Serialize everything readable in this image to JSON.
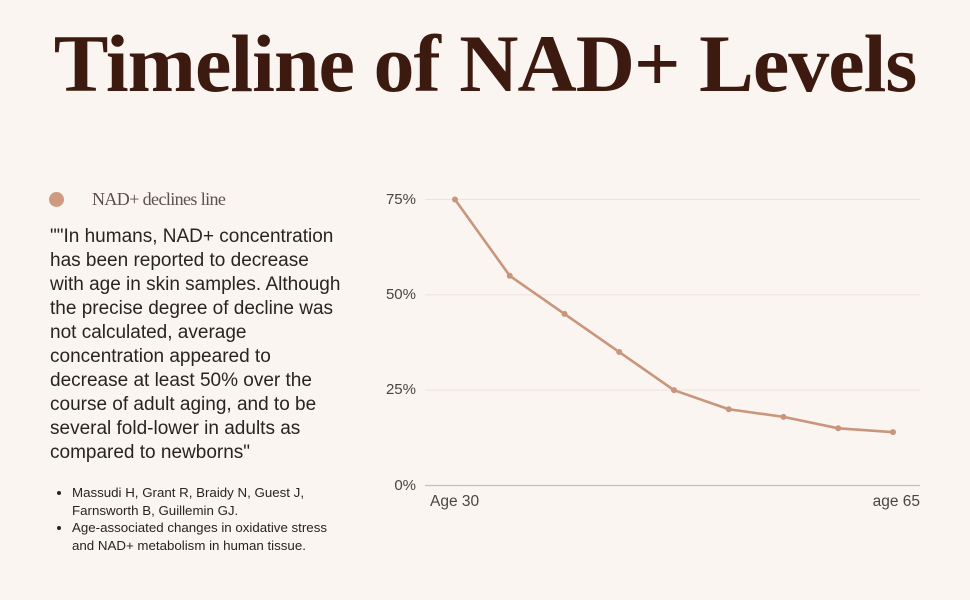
{
  "title": "Timeline of NAD+ Levels",
  "legend": {
    "label": "NAD+ declines line",
    "color": "#cf9a80"
  },
  "quote": {
    "lines": [
      "\"\"In humans, NAD+ concentration",
      "has been reported to decrease",
      "with age in skin samples. Although",
      "the precise degree of decline was",
      "not calculated, average",
      "concentration appeared to",
      "decrease at least 50% over the",
      "course of adult aging, and to be",
      "several fold-lower in adults as",
      "compared to newborns\""
    ]
  },
  "references": [
    {
      "lines": [
        "Massudi H, Grant R, Braidy N, Guest J,",
        "Farnsworth B, Guillemin GJ."
      ]
    },
    {
      "lines": [
        "Age-associated changes in oxidative stress",
        "and NAD+ metabolism in human tissue."
      ]
    }
  ],
  "colors": {
    "background": "#faf5f0",
    "title": "#3d1a10",
    "line": "#c9957c",
    "grid": "#ece4dc",
    "axis": "#c8c0b8"
  },
  "chart_data": {
    "type": "line",
    "title": "Timeline of NAD+ Levels",
    "xlabel": "",
    "ylabel": "",
    "x_tick_labels": [
      "Age 30",
      "age 65"
    ],
    "series": [
      {
        "name": "NAD+ declines line",
        "values": [
          75,
          55,
          45,
          35,
          25,
          20,
          18,
          15,
          14
        ]
      }
    ],
    "y_ticks": [
      {
        "value": 75,
        "label": "75%"
      },
      {
        "value": 50,
        "label": "50%"
      },
      {
        "value": 25,
        "label": "25%"
      },
      {
        "value": 0,
        "label": "0%"
      }
    ],
    "ylim": [
      0,
      75
    ],
    "grid": true,
    "legend_position": "top-left"
  }
}
